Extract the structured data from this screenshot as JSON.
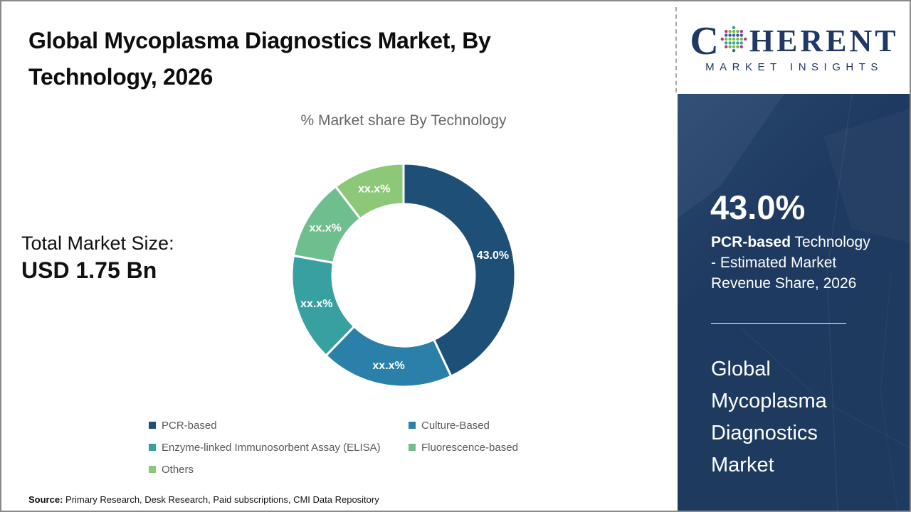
{
  "page": {
    "title_line1": "Global Mycoplasma Diagnostics Market, By",
    "title_line2": "Technology, 2026",
    "source_label": "Source:",
    "source_text": " Primary Research, Desk Research, Paid subscriptions, CMI Data Repository"
  },
  "logo": {
    "c": "C",
    "rest": "HERENT",
    "tagline": "MARKET INSIGHTS",
    "navy": "#1F3864",
    "globe_palette": [
      "#2FA3A0",
      "#79B843",
      "#3A5F9B",
      "#C0308C"
    ]
  },
  "market_size": {
    "label": "Total Market Size:",
    "value": "USD 1.75 Bn"
  },
  "sidebar": {
    "bg_color": "#1F3A60",
    "stat_value": "43.0%",
    "desc_bold": "PCR-based",
    "desc_rest": " Technology - Estimated Market Revenue Share, 2026",
    "market_words": [
      "Global",
      "Mycoplasma",
      "Diagnostics",
      "Market"
    ]
  },
  "chart_data": {
    "type": "pie",
    "subtype": "donut",
    "title": "% Market share By Technology",
    "start_angle_deg": 0,
    "direction": "clockwise",
    "inner_radius_ratio": 0.64,
    "legend_position": "bottom",
    "segments": [
      {
        "name": "PCR-based",
        "value": 43.0,
        "label": "43.0%",
        "color": "#1E5077"
      },
      {
        "name": "Culture-Based",
        "value": 19.2,
        "label": "xx.x%",
        "color": "#2B80A9"
      },
      {
        "name": "Enzyme-linked Immunosorbent Assay (ELISA)",
        "value": 15.6,
        "label": "xx.x%",
        "color": "#38A0A0"
      },
      {
        "name": "Fluorescence-based",
        "value": 11.8,
        "label": "xx.x%",
        "color": "#6FBE8E"
      },
      {
        "name": "Others",
        "value": 10.4,
        "label": "xx.x%",
        "color": "#8CC878"
      }
    ]
  }
}
